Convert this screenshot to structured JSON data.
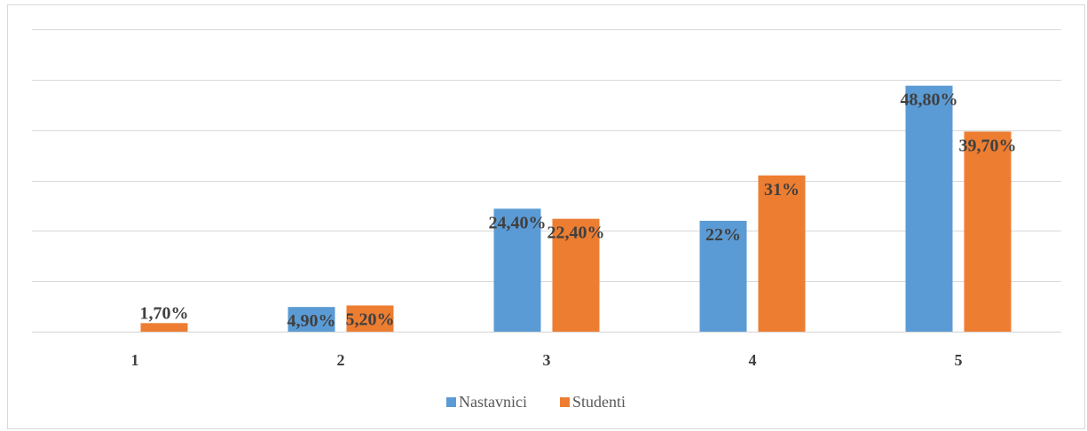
{
  "chart_data": {
    "type": "bar",
    "categories": [
      "1",
      "2",
      "3",
      "4",
      "5"
    ],
    "series": [
      {
        "name": "Nastavnici",
        "color": "#5b9bd5",
        "values": [
          null,
          4.9,
          24.4,
          22,
          48.8
        ],
        "labels": [
          "",
          "4,90%",
          "24,40%",
          "22%",
          "48,80%"
        ]
      },
      {
        "name": "Studenti",
        "color": "#ed7d31",
        "values": [
          1.7,
          5.2,
          22.4,
          31,
          39.7
        ],
        "labels": [
          "1,70%",
          "5,20%",
          "22,40%",
          "31%",
          "39,70%"
        ]
      }
    ],
    "ylim": [
      0,
      60
    ],
    "grid": true,
    "legend_position": "bottom",
    "title": "",
    "xlabel": "",
    "ylabel": ""
  }
}
